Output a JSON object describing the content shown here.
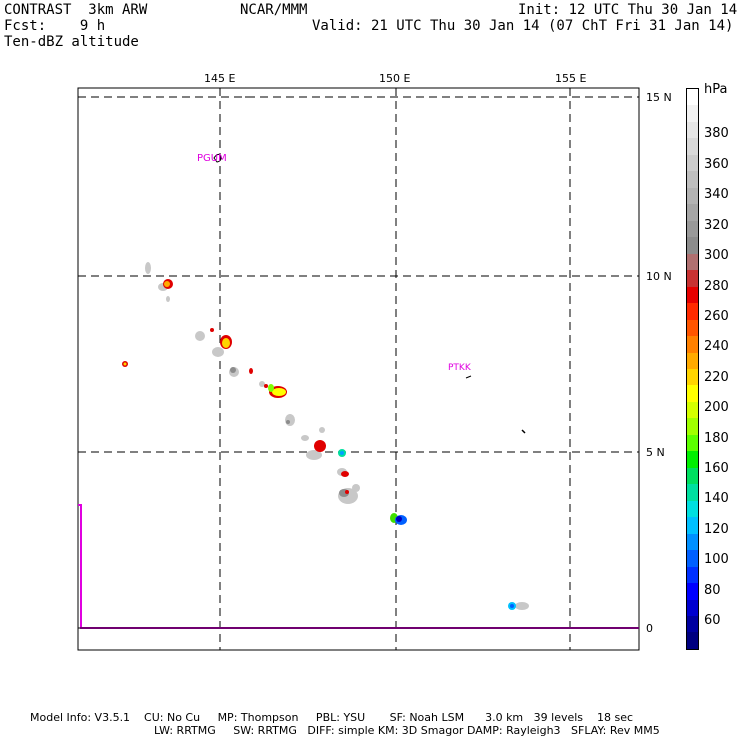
{
  "header": {
    "model": "CONTRAST  3km ARW",
    "fcst": "Fcst:    9 h",
    "field": "Ten-dBZ altitude",
    "center": "NCAR/MMM",
    "init": "Init: 12 UTC Thu 30 Jan 14",
    "valid": "Valid: 21 UTC Thu 30 Jan 14 (07 ChT Fri 31 Jan 14)"
  },
  "axes": {
    "lon_labels": [
      "145 E",
      "150 E",
      "155 E"
    ],
    "lat_labels": [
      "15 N",
      "10 N",
      "5 N",
      "0"
    ]
  },
  "stations": [
    {
      "id": "PGUM",
      "label": "PGUM"
    },
    {
      "id": "PTKK",
      "label": "PTKK"
    }
  ],
  "colorbar": {
    "unit": "hPa",
    "labels": [
      "380",
      "360",
      "340",
      "320",
      "300",
      "280",
      "260",
      "240",
      "220",
      "200",
      "180",
      "160",
      "140",
      "120",
      "100",
      "80",
      "60"
    ],
    "colors": [
      "#ffffff",
      "#f2f2f2",
      "#e6e6e6",
      "#d9d9d9",
      "#cccccc",
      "#bfbfbf",
      "#b3b3b3",
      "#a6a6a6",
      "#999999",
      "#8c8c8c",
      "#b07070",
      "#c83232",
      "#e60000",
      "#ff2a00",
      "#ff5500",
      "#ff8000",
      "#ffaa00",
      "#ffd400",
      "#ffff00",
      "#d4ff00",
      "#a0ff00",
      "#5cff00",
      "#00f000",
      "#00e060",
      "#00e0a0",
      "#00e0e0",
      "#00c0ff",
      "#0090ff",
      "#0060ff",
      "#0030ff",
      "#0000ff",
      "#0000d0",
      "#0000a0",
      "#000080"
    ]
  },
  "footer": {
    "line1": "Model Info: V3.5.1    CU: No Cu     MP: Thompson     PBL: YSU       SF: Noah LSM      3.0 km   39 levels    18 sec",
    "line2": "LW: RRTMG     SW: RRTMG   DIFF: simple KM: 3D Smagor DAMP: Rayleigh3   SFLAY: Rev MM5"
  }
}
